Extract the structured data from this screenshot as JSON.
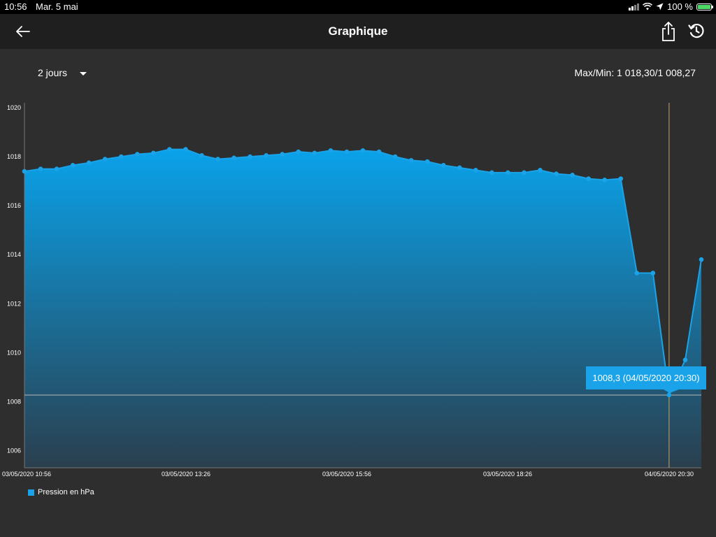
{
  "status_bar": {
    "time": "10:56",
    "date": "Mar. 5 mai",
    "battery": "100 %"
  },
  "nav": {
    "title": "Graphique",
    "icons": [
      "back-arrow-icon",
      "share-icon",
      "history-icon"
    ]
  },
  "controls": {
    "period": "2 jours",
    "maxmin": "Max/Min: 1 018,30/1 008,27"
  },
  "legend": {
    "label": "Pression en hPa"
  },
  "colors": {
    "background": "#2e2e2e",
    "nav": "#1f1f1f",
    "accent": "#1aa3e8",
    "crosshair_v": "#c8a46a",
    "crosshair_h": "#b8b8b8"
  },
  "chart_data": {
    "type": "area",
    "series": [
      {
        "name": "Pression en hPa",
        "values": [
          1017.4,
          1017.5,
          1017.5,
          1017.65,
          1017.75,
          1017.9,
          1018.0,
          1018.1,
          1018.15,
          1018.3,
          1018.3,
          1018.05,
          1017.9,
          1017.95,
          1018.0,
          1018.05,
          1018.1,
          1018.2,
          1018.15,
          1018.25,
          1018.2,
          1018.25,
          1018.2,
          1018.0,
          1017.85,
          1017.8,
          1017.65,
          1017.55,
          1017.45,
          1017.35,
          1017.35,
          1017.35,
          1017.45,
          1017.3,
          1017.25,
          1017.1,
          1017.05,
          1017.1,
          1013.25,
          1013.25,
          1008.27,
          1009.7,
          1013.8
        ]
      }
    ],
    "x_ticks": [
      "03/05/2020 10:56",
      "03/05/2020 13:26",
      "03/05/2020 15:56",
      "03/05/2020 18:26",
      "04/05/2020 20:30"
    ],
    "y_ticks": [
      1006,
      1008,
      1010,
      1012,
      1014,
      1016,
      1018,
      1020
    ],
    "ylim": [
      1005.3,
      1020.2
    ],
    "grid": false,
    "legend_position": "bottom-left",
    "tooltip": {
      "text": "1008,3 (04/05/2020 20:30)",
      "index": 40,
      "value": 1008.27
    }
  }
}
